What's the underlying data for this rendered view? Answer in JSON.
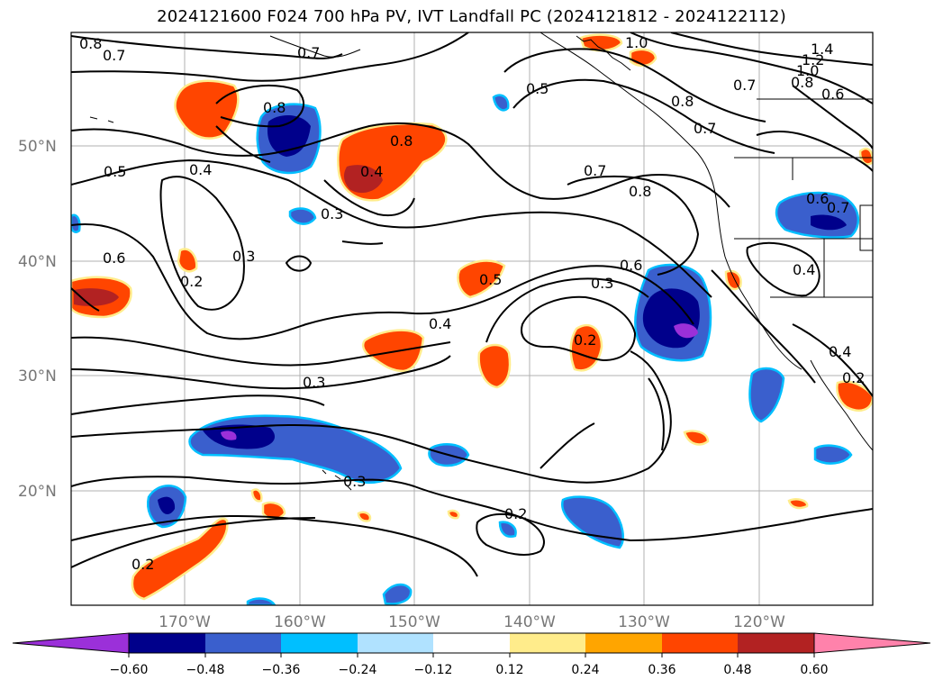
{
  "title": "2024121600 F024 700 hPa PV, IVT Landfall PC (2024121812 - 2024122112)",
  "lat_labels": [
    "50°N",
    "40°N",
    "30°N",
    "20°N"
  ],
  "lon_labels": [
    "170°W",
    "160°W",
    "150°W",
    "140°W",
    "130°W",
    "120°W"
  ],
  "colorbar": {
    "ticks": [
      "−0.60",
      "−0.48",
      "−0.36",
      "−0.24",
      "−0.12",
      "0.12",
      "0.24",
      "0.36",
      "0.48",
      "0.60"
    ],
    "colors": [
      "#9b30d9",
      "#00008b",
      "#3a5fcd",
      "#00bfff",
      "#b0e2ff",
      "#ffffff",
      "#ffec8b",
      "#ffa500",
      "#ff4500",
      "#b22222",
      "#ff82ab"
    ]
  },
  "contour_labels": [
    "0.8",
    "0.7",
    "0.7",
    "1.0",
    "1.4",
    "1.2",
    "1.0",
    "0.8",
    "0.6",
    "0.5",
    "0.7",
    "0.8",
    "0.7",
    "0.8",
    "0.8",
    "0.4",
    "0.5",
    "0.4",
    "0.3",
    "0.7",
    "0.8",
    "0.3",
    "0.6",
    "0.2",
    "0.6",
    "0.5",
    "0.6",
    "0.3",
    "0.4",
    "0.2",
    "0.3",
    "0.3",
    "0.2",
    "0.2",
    "0.4",
    "0.7",
    "0.4",
    "0.2"
  ]
}
